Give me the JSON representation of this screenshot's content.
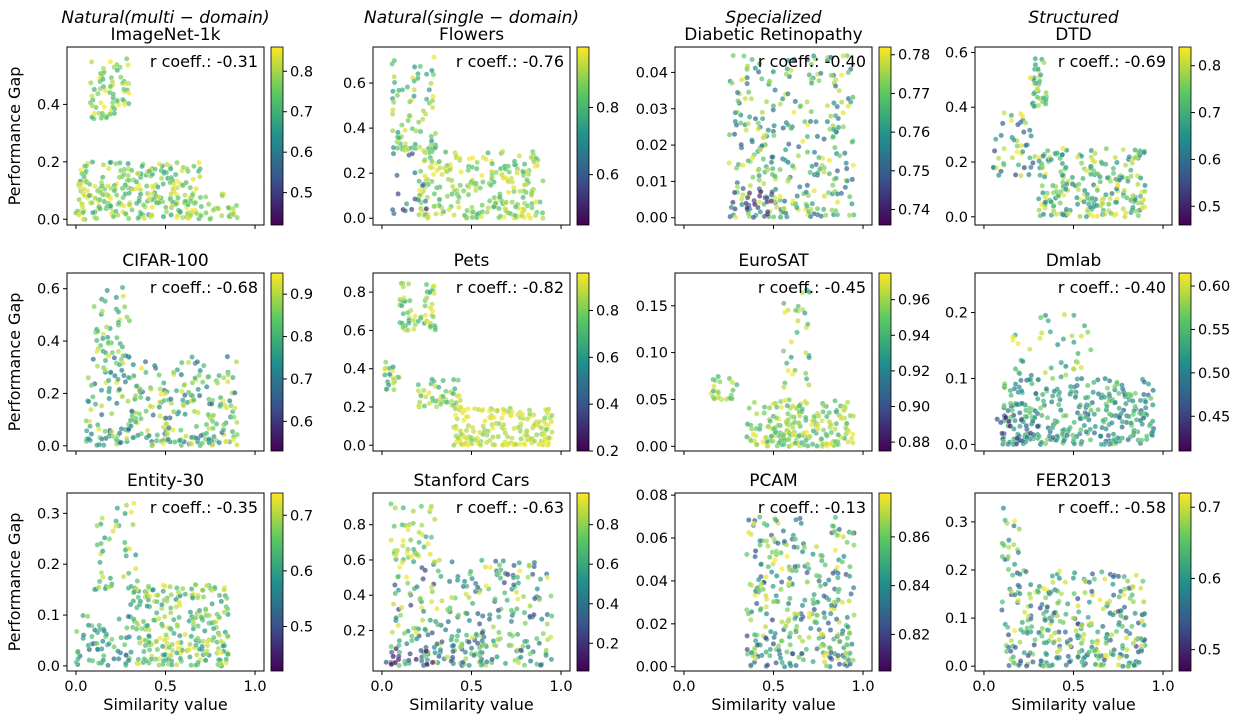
{
  "chart_data": {
    "type": "scatter",
    "figure_xlabel": "Similarity value",
    "figure_ylabel": "Performance Gap",
    "column_groups": [
      {
        "label": "Natural(multi − domain)",
        "base": "Natural",
        "paren": "(multi − domain)"
      },
      {
        "label": "Natural(single − domain)",
        "base": "Natural",
        "paren": "(single − domain)"
      },
      {
        "label": "Specialized",
        "base": "Specialized",
        "paren": ""
      },
      {
        "label": "Structured",
        "base": "Structured",
        "paren": ""
      }
    ],
    "colormap": [
      "#440154",
      "#3b528b",
      "#21918c",
      "#5ec962",
      "#fde725"
    ],
    "x_ticks": [
      0.0,
      0.5,
      1.0
    ],
    "x_tick_labels": [
      "0.0",
      "0.5",
      "1.0"
    ],
    "xlim": [
      -0.05,
      1.05
    ],
    "panels": [
      {
        "title": "ImageNet-1k",
        "r_coeff": "r coeff.: -0.31",
        "ylim": [
          -0.02,
          0.6
        ],
        "yticks": [
          0.0,
          0.2,
          0.4
        ],
        "ytick_labels": [
          "0.0",
          "0.2",
          "0.4"
        ],
        "cbar_range": [
          0.42,
          0.86
        ],
        "cbar_ticks": [
          0.5,
          0.6,
          0.7,
          0.8
        ],
        "cbar_tick_labels": [
          "0.5",
          "0.6",
          "0.7",
          "0.8"
        ],
        "seed": 11,
        "clusters": [
          {
            "x": [
              0.0,
              0.7
            ],
            "y": [
              0.0,
              0.2
            ],
            "c": [
              0.55,
              1.0
            ],
            "n": 260
          },
          {
            "x": [
              0.08,
              0.3
            ],
            "y": [
              0.35,
              0.56
            ],
            "c": [
              0.6,
              1.0
            ],
            "n": 70
          },
          {
            "x": [
              0.6,
              0.9
            ],
            "y": [
              0.0,
              0.09
            ],
            "c": [
              0.7,
              1.0
            ],
            "n": 40
          }
        ]
      },
      {
        "title": "Flowers",
        "r_coeff": "r coeff.: -0.76",
        "ylim": [
          -0.03,
          0.76
        ],
        "yticks": [
          0.0,
          0.2,
          0.4,
          0.6
        ],
        "ytick_labels": [
          "0.0",
          "0.2",
          "0.4",
          "0.6"
        ],
        "cbar_range": [
          0.45,
          0.98
        ],
        "cbar_ticks": [
          0.6,
          0.8
        ],
        "cbar_tick_labels": [
          "0.6",
          "0.8"
        ],
        "seed": 23,
        "clusters": [
          {
            "x": [
              0.05,
              0.3
            ],
            "y": [
              0.3,
              0.72
            ],
            "c": [
              0.5,
              1.0
            ],
            "n": 80
          },
          {
            "x": [
              0.2,
              0.9
            ],
            "y": [
              0.0,
              0.3
            ],
            "c": [
              0.65,
              1.0
            ],
            "n": 240
          },
          {
            "x": [
              0.05,
              0.25
            ],
            "y": [
              0.02,
              0.3
            ],
            "c": [
              0.0,
              0.6
            ],
            "n": 18
          }
        ]
      },
      {
        "title": "Diabetic Retinopathy",
        "r_coeff": "r coeff.: -0.40",
        "ylim": [
          -0.002,
          0.047
        ],
        "yticks": [
          0.0,
          0.01,
          0.02,
          0.03,
          0.04
        ],
        "ytick_labels": [
          "0.00",
          "0.01",
          "0.02",
          "0.03",
          "0.04"
        ],
        "cbar_range": [
          0.736,
          0.782
        ],
        "cbar_ticks": [
          0.74,
          0.75,
          0.76,
          0.77,
          0.78
        ],
        "cbar_tick_labels": [
          "0.74",
          "0.75",
          "0.76",
          "0.77",
          "0.78"
        ],
        "seed": 37,
        "clusters": [
          {
            "x": [
              0.25,
              0.95
            ],
            "y": [
              0.0,
              0.045
            ],
            "c": [
              0.3,
              1.0
            ],
            "n": 300
          },
          {
            "x": [
              0.25,
              0.5
            ],
            "y": [
              0.0,
              0.008
            ],
            "c": [
              0.0,
              0.3
            ],
            "n": 25
          }
        ]
      },
      {
        "title": "DTD",
        "r_coeff": "r coeff.: -0.69",
        "ylim": [
          -0.03,
          0.62
        ],
        "yticks": [
          0.0,
          0.2,
          0.4,
          0.6
        ],
        "ytick_labels": [
          "0.0",
          "0.2",
          "0.4",
          "0.6"
        ],
        "cbar_range": [
          0.46,
          0.84
        ],
        "cbar_ticks": [
          0.5,
          0.6,
          0.7,
          0.8
        ],
        "cbar_tick_labels": [
          "0.5",
          "0.6",
          "0.7",
          "0.8"
        ],
        "seed": 41,
        "clusters": [
          {
            "x": [
              0.05,
              0.3
            ],
            "y": [
              0.15,
              0.38
            ],
            "c": [
              0.2,
              1.0
            ],
            "n": 45
          },
          {
            "x": [
              0.25,
              0.35
            ],
            "y": [
              0.4,
              0.58
            ],
            "c": [
              0.5,
              1.0
            ],
            "n": 35
          },
          {
            "x": [
              0.3,
              0.9
            ],
            "y": [
              0.0,
              0.25
            ],
            "c": [
              0.4,
              1.0
            ],
            "n": 230
          }
        ]
      },
      {
        "title": "CIFAR-100",
        "r_coeff": "r coeff.: -0.68",
        "ylim": [
          -0.02,
          0.66
        ],
        "yticks": [
          0.0,
          0.2,
          0.4,
          0.6
        ],
        "ytick_labels": [
          "0.0",
          "0.2",
          "0.4",
          "0.6"
        ],
        "cbar_range": [
          0.53,
          0.95
        ],
        "cbar_ticks": [
          0.6,
          0.7,
          0.8,
          0.9
        ],
        "cbar_tick_labels": [
          "0.6",
          "0.7",
          "0.8",
          "0.9"
        ],
        "seed": 53,
        "clusters": [
          {
            "x": [
              0.1,
              0.3
            ],
            "y": [
              0.35,
              0.62
            ],
            "c": [
              0.5,
              1.0
            ],
            "n": 40
          },
          {
            "x": [
              0.05,
              0.9
            ],
            "y": [
              0.0,
              0.35
            ],
            "c": [
              0.3,
              1.0
            ],
            "n": 300
          }
        ]
      },
      {
        "title": "Pets",
        "r_coeff": "r coeff.: -0.82",
        "ylim": [
          -0.03,
          0.9
        ],
        "yticks": [
          0.0,
          0.2,
          0.4,
          0.6,
          0.8
        ],
        "ytick_labels": [
          "0.0",
          "0.2",
          "0.4",
          "0.6",
          "0.8"
        ],
        "cbar_range": [
          0.2,
          0.96
        ],
        "cbar_ticks": [
          0.2,
          0.4,
          0.6,
          0.8
        ],
        "cbar_tick_labels": [
          "0.2",
          "0.4",
          "0.6",
          "0.8"
        ],
        "seed": 67,
        "clusters": [
          {
            "x": [
              0.1,
              0.3
            ],
            "y": [
              0.6,
              0.85
            ],
            "c": [
              0.6,
              1.0
            ],
            "n": 60
          },
          {
            "x": [
              0.0,
              0.1
            ],
            "y": [
              0.28,
              0.45
            ],
            "c": [
              0.5,
              1.0
            ],
            "n": 20
          },
          {
            "x": [
              0.2,
              0.45
            ],
            "y": [
              0.2,
              0.35
            ],
            "c": [
              0.6,
              1.0
            ],
            "n": 45
          },
          {
            "x": [
              0.4,
              0.95
            ],
            "y": [
              0.0,
              0.2
            ],
            "c": [
              0.8,
              1.0
            ],
            "n": 180
          }
        ]
      },
      {
        "title": "EuroSAT",
        "r_coeff": "r coeff.: -0.45",
        "ylim": [
          -0.005,
          0.185
        ],
        "yticks": [
          0.0,
          0.05,
          0.1,
          0.15
        ],
        "ytick_labels": [
          "0.00",
          "0.05",
          "0.10",
          "0.15"
        ],
        "cbar_range": [
          0.875,
          0.975
        ],
        "cbar_ticks": [
          0.88,
          0.9,
          0.92,
          0.94,
          0.96
        ],
        "cbar_tick_labels": [
          "0.88",
          "0.90",
          "0.92",
          "0.94",
          "0.96"
        ],
        "seed": 79,
        "clusters": [
          {
            "x": [
              0.15,
              0.3
            ],
            "y": [
              0.05,
              0.075
            ],
            "c": [
              0.6,
              1.0
            ],
            "n": 25
          },
          {
            "x": [
              0.35,
              0.95
            ],
            "y": [
              0.0,
              0.05
            ],
            "c": [
              0.6,
              1.0
            ],
            "n": 200
          },
          {
            "x": [
              0.55,
              0.7
            ],
            "y": [
              0.06,
              0.17
            ],
            "c": [
              0.5,
              1.0
            ],
            "n": 30
          }
        ]
      },
      {
        "title": "Dmlab",
        "r_coeff": "r coeff.: -0.40",
        "ylim": [
          -0.01,
          0.26
        ],
        "yticks": [
          0.0,
          0.1,
          0.2
        ],
        "ytick_labels": [
          "0.0",
          "0.1",
          "0.2"
        ],
        "cbar_range": [
          0.41,
          0.615
        ],
        "cbar_ticks": [
          0.45,
          0.5,
          0.55,
          0.6
        ],
        "cbar_tick_labels": [
          "0.45",
          "0.50",
          "0.55",
          "0.60"
        ],
        "seed": 83,
        "clusters": [
          {
            "x": [
              0.1,
              0.95
            ],
            "y": [
              0.0,
              0.1
            ],
            "c": [
              0.3,
              0.8
            ],
            "n": 320
          },
          {
            "x": [
              0.15,
              0.6
            ],
            "y": [
              0.1,
              0.2
            ],
            "c": [
              0.4,
              1.0
            ],
            "n": 40
          },
          {
            "x": [
              0.05,
              0.3
            ],
            "y": [
              0.0,
              0.05
            ],
            "c": [
              0.0,
              0.4
            ],
            "n": 20
          }
        ]
      },
      {
        "title": "Entity-30",
        "r_coeff": "r coeff.: -0.35",
        "ylim": [
          -0.01,
          0.34
        ],
        "yticks": [
          0.0,
          0.1,
          0.2,
          0.3
        ],
        "ytick_labels": [
          "0.0",
          "0.1",
          "0.2",
          "0.3"
        ],
        "cbar_range": [
          0.42,
          0.74
        ],
        "cbar_ticks": [
          0.5,
          0.6,
          0.7
        ],
        "cbar_tick_labels": [
          "0.5",
          "0.6",
          "0.7"
        ],
        "seed": 97,
        "clusters": [
          {
            "x": [
              0.1,
              0.35
            ],
            "y": [
              0.15,
              0.32
            ],
            "c": [
              0.5,
              1.0
            ],
            "n": 45
          },
          {
            "x": [
              0.3,
              0.85
            ],
            "y": [
              0.0,
              0.16
            ],
            "c": [
              0.5,
              1.0
            ],
            "n": 260
          },
          {
            "x": [
              0.0,
              0.3
            ],
            "y": [
              0.0,
              0.1
            ],
            "c": [
              0.3,
              0.8
            ],
            "n": 60
          }
        ]
      },
      {
        "title": "Stanford Cars",
        "r_coeff": "r coeff.: -0.63",
        "ylim": [
          -0.03,
          0.98
        ],
        "yticks": [
          0.2,
          0.4,
          0.6,
          0.8
        ],
        "ytick_labels": [
          "0.2",
          "0.4",
          "0.6",
          "0.8"
        ],
        "cbar_range": [
          0.06,
          0.96
        ],
        "cbar_ticks": [
          0.2,
          0.4,
          0.6,
          0.8
        ],
        "cbar_tick_labels": [
          "0.2",
          "0.4",
          "0.6",
          "0.8"
        ],
        "seed": 101,
        "clusters": [
          {
            "x": [
              0.05,
              0.3
            ],
            "y": [
              0.6,
              0.92
            ],
            "c": [
              0.6,
              1.0
            ],
            "n": 45
          },
          {
            "x": [
              0.05,
              0.95
            ],
            "y": [
              0.0,
              0.6
            ],
            "c": [
              0.2,
              1.0
            ],
            "n": 300
          },
          {
            "x": [
              0.0,
              0.35
            ],
            "y": [
              0.0,
              0.1
            ],
            "c": [
              0.0,
              0.3
            ],
            "n": 15
          }
        ]
      },
      {
        "title": "PCAM",
        "r_coeff": "r coeff.: -0.13",
        "ylim": [
          -0.002,
          0.081
        ],
        "yticks": [
          0.0,
          0.02,
          0.04,
          0.06,
          0.08
        ],
        "ytick_labels": [
          "0.00",
          "0.02",
          "0.04",
          "0.06",
          "0.08"
        ],
        "cbar_range": [
          0.805,
          0.878
        ],
        "cbar_ticks": [
          0.82,
          0.84,
          0.86
        ],
        "cbar_tick_labels": [
          "0.82",
          "0.84",
          "0.86"
        ],
        "seed": 113,
        "clusters": [
          {
            "x": [
              0.35,
              0.95
            ],
            "y": [
              0.0,
              0.07
            ],
            "c": [
              0.2,
              1.0
            ],
            "n": 320
          }
        ]
      },
      {
        "title": "FER2013",
        "r_coeff": "r coeff.: -0.58",
        "ylim": [
          -0.01,
          0.36
        ],
        "yticks": [
          0.0,
          0.1,
          0.2,
          0.3
        ],
        "ytick_labels": [
          "0.0",
          "0.1",
          "0.2",
          "0.3"
        ],
        "cbar_range": [
          0.47,
          0.72
        ],
        "cbar_ticks": [
          0.5,
          0.6,
          0.7
        ],
        "cbar_tick_labels": [
          "0.5",
          "0.6",
          "0.7"
        ],
        "seed": 127,
        "clusters": [
          {
            "x": [
              0.1,
              0.2
            ],
            "y": [
              0.2,
              0.33
            ],
            "c": [
              0.4,
              1.0
            ],
            "n": 20
          },
          {
            "x": [
              0.1,
              0.9
            ],
            "y": [
              0.0,
              0.2
            ],
            "c": [
              0.2,
              1.0
            ],
            "n": 320
          }
        ]
      }
    ]
  }
}
